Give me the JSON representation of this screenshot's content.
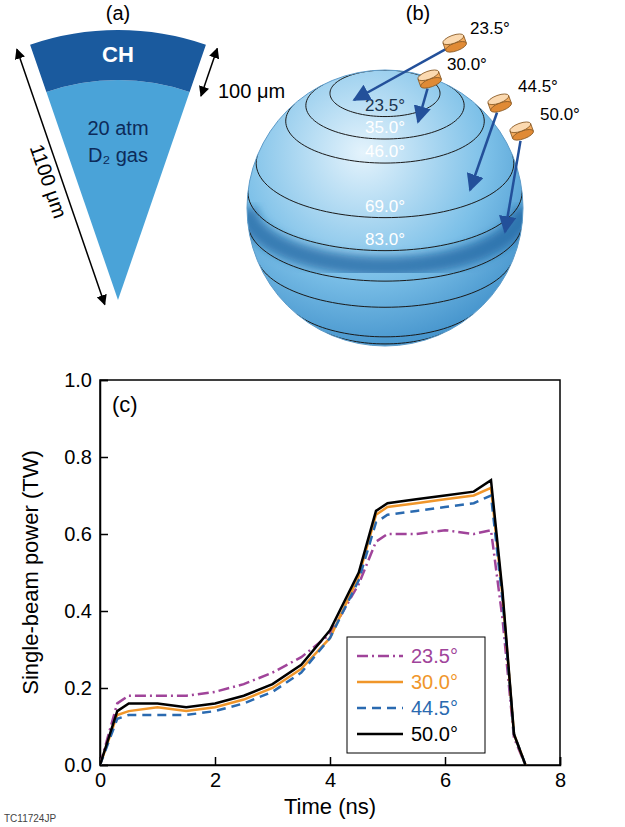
{
  "figure_id": "TC11724JP",
  "diagram_a": {
    "label": "(a)",
    "shell": "CH",
    "shell_thickness": "100 μm",
    "radius": "1100 μm",
    "gas": [
      "20 atm",
      "D₂ gas"
    ]
  },
  "diagram_b": {
    "label": "(b)",
    "latitudes": [
      {
        "value": 23.5,
        "label": "23.5°"
      },
      {
        "value": 35.0,
        "label": "35.0°"
      },
      {
        "value": 46.0,
        "label": "46.0°"
      },
      {
        "value": 69.0,
        "label": "69.0°"
      },
      {
        "value": 83.0,
        "label": "83.0°"
      }
    ],
    "beams": [
      "23.5°",
      "30.0°",
      "44.5°",
      "50.0°"
    ]
  },
  "chart_data": {
    "type": "line",
    "annotations": [
      "(c)"
    ],
    "x_label": "Time (ns)",
    "y_label": "Single-beam power (TW)",
    "x": [
      0,
      0.3,
      0.5,
      1,
      1.5,
      2,
      2.5,
      3,
      3.5,
      4,
      4.5,
      4.8,
      5,
      5.5,
      6,
      6.5,
      6.8,
      7,
      7.2,
      7.4
    ],
    "series": [
      {
        "name": "23.5°",
        "color": "#a0449a",
        "line_style": "dashdot",
        "values": [
          0,
          0.16,
          0.18,
          0.18,
          0.18,
          0.19,
          0.21,
          0.24,
          0.28,
          0.34,
          0.47,
          0.58,
          0.6,
          0.6,
          0.61,
          0.6,
          0.61,
          0.38,
          0.07,
          0
        ]
      },
      {
        "name": "30.0°",
        "color": "#f0962a",
        "line_style": "solid",
        "values": [
          0,
          0.13,
          0.14,
          0.15,
          0.14,
          0.15,
          0.17,
          0.2,
          0.25,
          0.33,
          0.49,
          0.65,
          0.67,
          0.68,
          0.69,
          0.7,
          0.72,
          0.44,
          0.08,
          0
        ]
      },
      {
        "name": "44.5°",
        "color": "#2a6ab0",
        "line_style": "dashed",
        "values": [
          0,
          0.12,
          0.13,
          0.13,
          0.13,
          0.14,
          0.16,
          0.19,
          0.24,
          0.33,
          0.48,
          0.63,
          0.65,
          0.66,
          0.67,
          0.68,
          0.7,
          0.43,
          0.08,
          0
        ]
      },
      {
        "name": "50.0°",
        "color": "#000000",
        "line_style": "solid",
        "values": [
          0,
          0.14,
          0.16,
          0.16,
          0.15,
          0.16,
          0.18,
          0.21,
          0.26,
          0.35,
          0.5,
          0.66,
          0.68,
          0.69,
          0.7,
          0.71,
          0.74,
          0.45,
          0.08,
          0
        ]
      }
    ],
    "xlim": [
      0,
      8
    ],
    "xticks": [
      0,
      2,
      4,
      6,
      8
    ],
    "ylim": [
      0,
      1
    ],
    "yticks": [
      {
        "value": 0,
        "label": "0.0"
      },
      0.2,
      0.4,
      0.6,
      0.8,
      {
        "value": 1,
        "label": "1.0"
      }
    ],
    "legend": "lower right",
    "grid": false
  }
}
